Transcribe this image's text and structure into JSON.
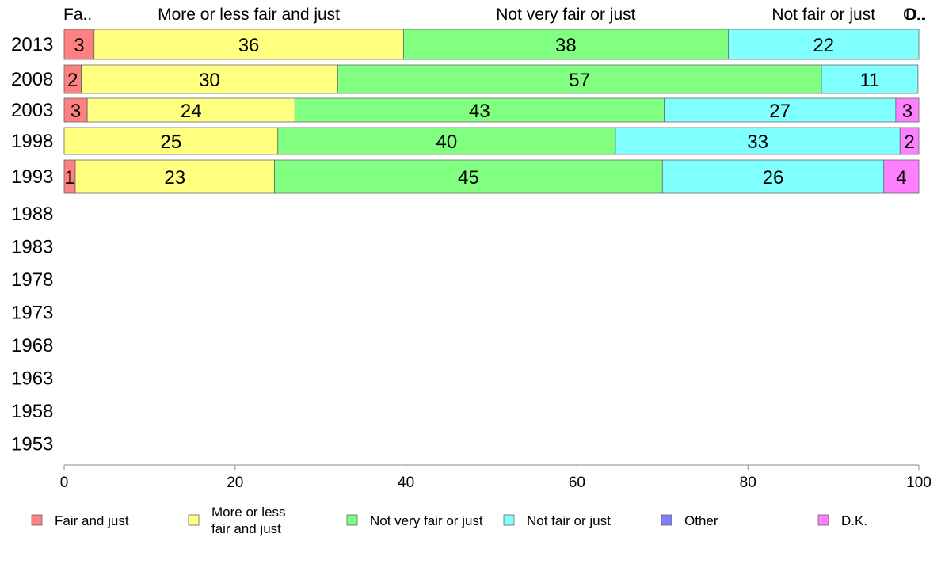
{
  "chart_data": {
    "type": "bar",
    "orientation": "horizontal",
    "stacked": true,
    "categories": [
      "2013",
      "2008",
      "2003",
      "1998",
      "1993",
      "1988",
      "1983",
      "1978",
      "1973",
      "1968",
      "1963",
      "1958",
      "1953"
    ],
    "series": [
      {
        "name": "Fair and just",
        "short": "Fa..",
        "color": "#ff8080",
        "values": [
          3.5,
          2.0,
          2.7,
          0,
          1.3,
          null,
          null,
          null,
          null,
          null,
          null,
          null,
          null
        ],
        "labels": [
          "3",
          "2",
          "3",
          "",
          "1",
          "",
          "",
          "",
          "",
          "",
          "",
          "",
          ""
        ]
      },
      {
        "name": "More or less fair and just",
        "legend_lines": [
          "More or less",
          "fair and just"
        ],
        "short": "More or less fair and just",
        "color": "#ffff80",
        "values": [
          36.2,
          30.0,
          24.3,
          25.0,
          23.3,
          null,
          null,
          null,
          null,
          null,
          null,
          null,
          null
        ],
        "labels": [
          "36",
          "30",
          "24",
          "25",
          "23",
          "",
          "",
          "",
          "",
          "",
          "",
          "",
          ""
        ]
      },
      {
        "name": "Not very fair or just",
        "short": "Not very fair or just",
        "color": "#80ff80",
        "values": [
          38.0,
          56.6,
          43.2,
          39.5,
          45.4,
          null,
          null,
          null,
          null,
          null,
          null,
          null,
          null
        ],
        "labels": [
          "38",
          "57",
          "43",
          "40",
          "45",
          "",
          "",
          "",
          "",
          "",
          "",
          "",
          ""
        ]
      },
      {
        "name": "Not fair or just",
        "short": "Not fair or just",
        "color": "#80ffff",
        "values": [
          22.3,
          11.3,
          27.1,
          33.3,
          25.9,
          null,
          null,
          null,
          null,
          null,
          null,
          null,
          null
        ],
        "labels": [
          "22",
          "11",
          "27",
          "33",
          "26",
          "",
          "",
          "",
          "",
          "",
          "",
          "",
          ""
        ]
      },
      {
        "name": "Other",
        "short": "O..",
        "color": "#8080ff",
        "values": [
          0,
          0,
          0,
          0,
          0,
          null,
          null,
          null,
          null,
          null,
          null,
          null,
          null
        ],
        "labels": [
          "",
          "",
          "",
          "",
          "",
          "",
          "",
          "",
          "",
          "",
          "",
          "",
          ""
        ]
      },
      {
        "name": "D.K.",
        "short": "D..",
        "color": "#ff80ff",
        "values": [
          0,
          0,
          2.7,
          2.2,
          4.1,
          null,
          null,
          null,
          null,
          null,
          null,
          null,
          null
        ],
        "labels": [
          "",
          "",
          "3",
          "2",
          "4",
          "",
          "",
          "",
          "",
          "",
          "",
          "",
          ""
        ]
      }
    ],
    "xlim": [
      0,
      100
    ],
    "x_ticks": [
      0,
      20,
      40,
      60,
      80,
      100
    ],
    "title": "",
    "xlabel": "",
    "ylabel": "",
    "grid": false,
    "legend_position": "bottom"
  }
}
